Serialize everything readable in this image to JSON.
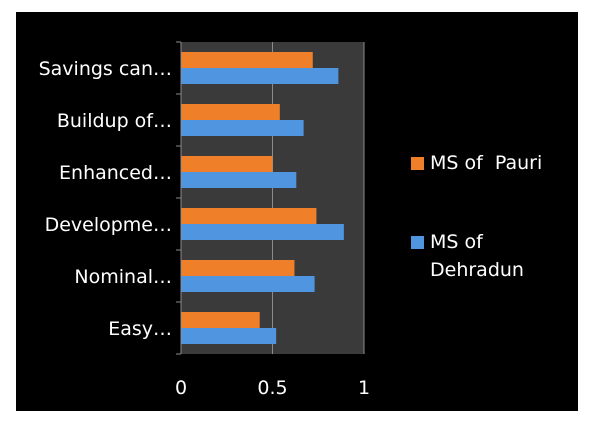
{
  "chart_data": {
    "type": "bar",
    "orientation": "horizontal",
    "categories": [
      "Savings can…",
      "Buildup of…",
      "Enhanced…",
      "Developme…",
      "Nominal…",
      "Easy…"
    ],
    "series": [
      {
        "name": "MS of  Pauri",
        "color": "#F07F2A",
        "values": [
          0.72,
          0.54,
          0.5,
          0.74,
          0.62,
          0.43
        ]
      },
      {
        "name": "MS of Dehradun",
        "color": "#4F95E0",
        "values": [
          0.86,
          0.67,
          0.63,
          0.89,
          0.73,
          0.52
        ]
      }
    ],
    "x_ticks": [
      "0",
      "0.5",
      "1"
    ],
    "xlim": [
      0,
      1
    ],
    "grid": "vertical",
    "legend_position": "right",
    "plot_background": "#3A3A3A",
    "figure_background": "#000000"
  },
  "legend": {
    "pauri": "MS of  Pauri",
    "dehradun_line1": "MS of",
    "dehradun_line2": "Dehradun"
  }
}
